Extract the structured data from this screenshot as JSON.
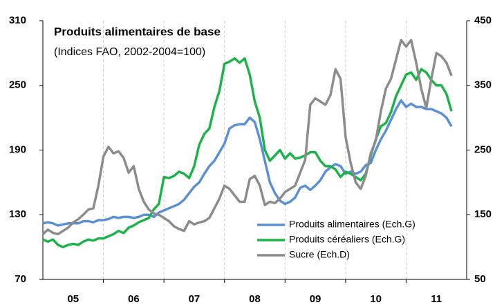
{
  "chart_data": {
    "type": "line",
    "title": "Produits alimentaires de base",
    "subtitle": "(Indices FAO, 2002-2004=100)",
    "categories": [
      null,
      null,
      null,
      null,
      null,
      null,
      "05",
      null,
      null,
      null,
      null,
      null,
      null,
      null,
      null,
      null,
      null,
      null,
      "06",
      null,
      null,
      null,
      null,
      null,
      null,
      null,
      null,
      null,
      null,
      null,
      "07",
      null,
      null,
      null,
      null,
      null,
      null,
      null,
      null,
      null,
      null,
      null,
      "08",
      null,
      null,
      null,
      null,
      null,
      null,
      null,
      null,
      null,
      null,
      null,
      "09",
      null,
      null,
      null,
      null,
      null,
      null,
      null,
      null,
      null,
      null,
      null,
      "10",
      null,
      null,
      null,
      null,
      null,
      null,
      null,
      null,
      null,
      null,
      null,
      "11",
      null,
      null,
      null
    ],
    "series": [
      {
        "name": "Produits alimentaires (Ech.G)",
        "color": "#5b8fd6",
        "values": [
          122,
          123,
          122,
          120,
          121,
          122,
          122,
          122,
          124,
          124,
          123,
          125,
          125,
          126,
          128,
          127,
          128,
          128,
          127,
          128,
          130,
          130,
          128,
          132,
          134,
          136,
          138,
          140,
          144,
          150,
          156,
          160,
          168,
          175,
          180,
          188,
          196,
          210,
          213,
          214,
          214,
          220,
          216,
          200,
          180,
          160,
          150,
          143,
          140,
          142,
          146,
          155,
          157,
          153,
          157,
          162,
          170,
          174,
          177,
          175,
          168,
          170,
          168,
          170,
          176,
          178,
          190,
          200,
          208,
          218,
          228,
          236,
          230,
          233,
          230,
          230,
          228,
          228,
          226,
          224,
          220,
          212
        ]
      },
      {
        "name": "Produits céréaliers (Ech.G)",
        "color": "#1db34a",
        "values": [
          107,
          105,
          107,
          102,
          100,
          102,
          103,
          102,
          105,
          107,
          106,
          108,
          108,
          110,
          112,
          115,
          113,
          118,
          120,
          123,
          125,
          127,
          135,
          140,
          165,
          164,
          166,
          170,
          168,
          164,
          175,
          195,
          205,
          210,
          230,
          245,
          270,
          272,
          275,
          271,
          275,
          260,
          235,
          220,
          190,
          180,
          185,
          190,
          182,
          187,
          182,
          183,
          185,
          188,
          188,
          180,
          175,
          175,
          172,
          165,
          170,
          168,
          165,
          162,
          168,
          185,
          200,
          212,
          215,
          225,
          240,
          250,
          260,
          262,
          255,
          265,
          262,
          255,
          250,
          250,
          242,
          226
        ]
      },
      {
        "name": "Sucre (Ech.D)",
        "color": "#8c8c8c",
        "axis": "y2",
        "values": [
          120,
          127,
          122,
          120,
          125,
          130,
          138,
          143,
          150,
          158,
          160,
          195,
          240,
          255,
          245,
          248,
          238,
          215,
          225,
          190,
          170,
          158,
          152,
          150,
          145,
          140,
          132,
          128,
          125,
          140,
          135,
          138,
          140,
          145,
          160,
          175,
          195,
          190,
          180,
          170,
          170,
          205,
          210,
          195,
          165,
          170,
          168,
          175,
          185,
          190,
          195,
          215,
          235,
          320,
          330,
          325,
          320,
          335,
          375,
          360,
          270,
          230,
          200,
          190,
          210,
          245,
          265,
          310,
          345,
          360,
          390,
          420,
          410,
          420,
          385,
          345,
          315,
          360,
          400,
          395,
          385,
          365
        ]
      }
    ],
    "ylim": [
      70,
      310
    ],
    "yticks": [
      70,
      130,
      190,
      250,
      310
    ],
    "y2lim": [
      50,
      450
    ],
    "y2ticks": [
      50,
      150,
      250,
      350,
      450
    ],
    "legend": "lower right"
  }
}
